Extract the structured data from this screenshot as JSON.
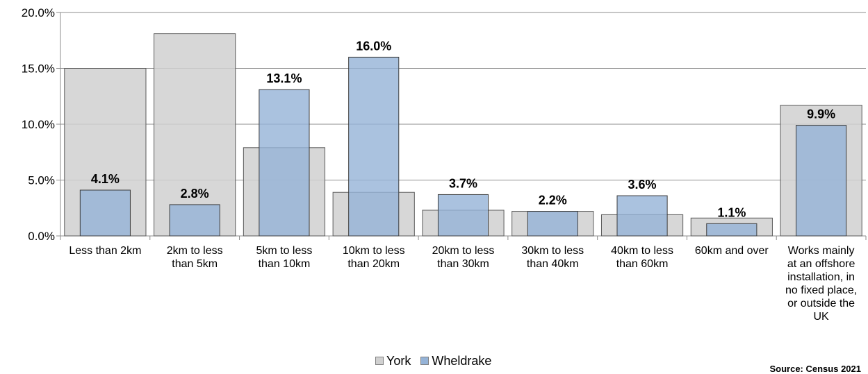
{
  "chart_data": {
    "type": "bar",
    "categories": [
      "Less than 2km",
      "2km to less than 5km",
      "5km to less than 10km",
      "10km to less than 20km",
      "20km to less than 30km",
      "30km to less than 40km",
      "40km to less than 60km",
      "60km and over",
      "Works mainly at an offshore installation, in no fixed place, or outside the UK"
    ],
    "category_label_lines": [
      [
        "Less than 2km"
      ],
      [
        "2km to less",
        "than 5km"
      ],
      [
        "5km to less",
        "than 10km"
      ],
      [
        "10km to less",
        "than 20km"
      ],
      [
        "20km to less",
        "than 30km"
      ],
      [
        "30km to less",
        "than 40km"
      ],
      [
        "40km to less",
        "than 60km"
      ],
      [
        "60km and over"
      ],
      [
        "Works mainly",
        "at an offshore",
        "installation, in",
        "no fixed place,",
        "or outside the",
        "UK"
      ]
    ],
    "series": [
      {
        "name": "York",
        "values": [
          15.0,
          18.1,
          7.9,
          3.9,
          2.3,
          2.2,
          1.9,
          1.6,
          11.7
        ],
        "color": "#d0d0d0"
      },
      {
        "name": "Wheldrake",
        "values": [
          4.1,
          2.8,
          13.1,
          16.0,
          3.7,
          2.2,
          3.6,
          1.1,
          9.9
        ],
        "color": "#95b3d7"
      }
    ],
    "data_labels": [
      "4.1%",
      "2.8%",
      "13.1%",
      "16.0%",
      "3.7%",
      "2.2%",
      "3.6%",
      "1.1%",
      "9.9%"
    ],
    "y_ticks": [
      "0.0%",
      "5.0%",
      "10.0%",
      "15.0%",
      "20.0%"
    ],
    "ylim": [
      0,
      20
    ],
    "grid": true,
    "legend_position": "bottom",
    "title": "",
    "xlabel": "",
    "ylabel": ""
  },
  "legend": {
    "york": "York",
    "wheldrake": "Wheldrake"
  },
  "source": "Source: Census 2021"
}
